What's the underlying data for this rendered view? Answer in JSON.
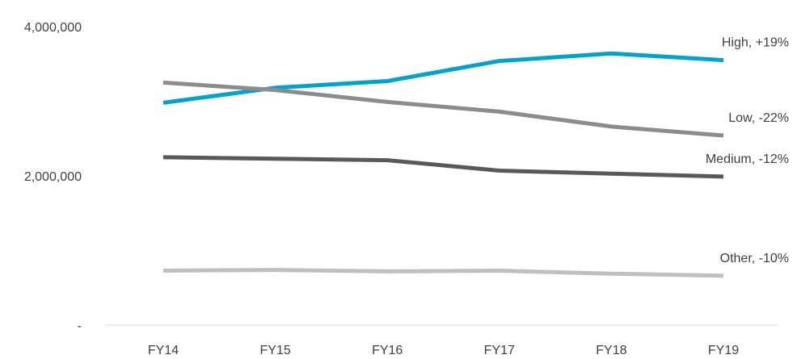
{
  "chart_data": {
    "type": "line",
    "categories": [
      "FY14",
      "FY15",
      "FY16",
      "FY17",
      "FY18",
      "FY19"
    ],
    "yaxis": {
      "min": 0,
      "max": 4000000,
      "ticks": [
        {
          "value": 4000000,
          "label": "4,000,000"
        },
        {
          "value": 2000000,
          "label": "2,000,000"
        },
        {
          "value": 0,
          "label": "-"
        }
      ]
    },
    "grid": false,
    "legend": "none (series labels at line ends)",
    "series": [
      {
        "key": "high",
        "label": "High, +19%",
        "color": "#00A3CC",
        "values": [
          2980000,
          3180000,
          3270000,
          3540000,
          3640000,
          3550000
        ]
      },
      {
        "key": "low",
        "label": "Low, -22%",
        "color": "#8C8C8C",
        "values": [
          3250000,
          3150000,
          2990000,
          2860000,
          2660000,
          2540000
        ]
      },
      {
        "key": "medium",
        "label": "Medium, -12%",
        "color": "#595959",
        "values": [
          2250000,
          2230000,
          2210000,
          2070000,
          2030000,
          1990000
        ]
      },
      {
        "key": "other",
        "label": "Other, -10%",
        "color": "#BFBFBF",
        "values": [
          730000,
          740000,
          720000,
          730000,
          690000,
          660000
        ]
      }
    ]
  }
}
